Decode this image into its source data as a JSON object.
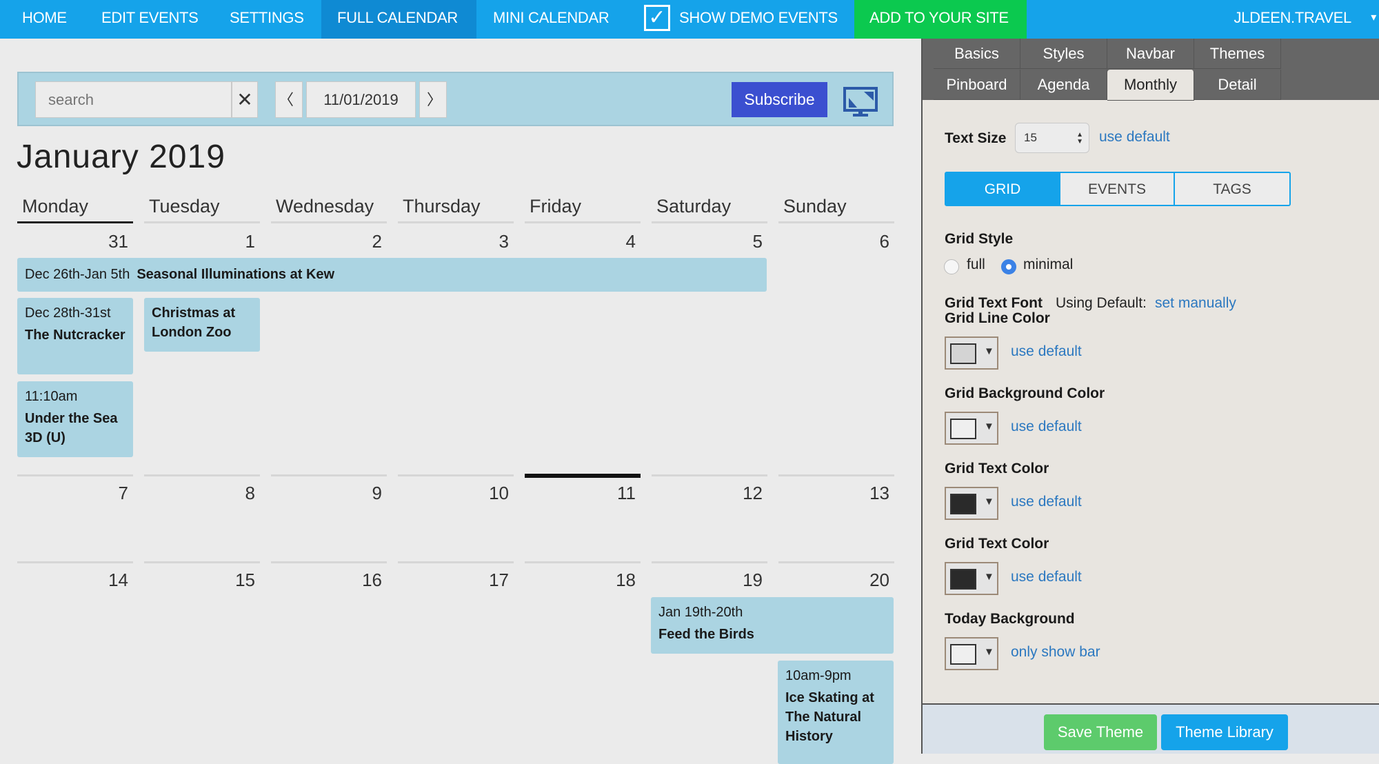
{
  "nav": {
    "items": [
      "HOME",
      "EDIT EVENTS",
      "SETTINGS",
      "FULL CALENDAR",
      "MINI CALENDAR"
    ],
    "active": "FULL CALENDAR",
    "demo_label": "SHOW DEMO EVENTS",
    "demo_checked": true,
    "add_label": "ADD TO YOUR SITE",
    "account": "JLDEEN.TRAVEL",
    "account_caret": "▾",
    "colors": {
      "bar": "#15a3ea",
      "active": "#0f8ad3",
      "add": "#0bc94f"
    }
  },
  "toolbar": {
    "search_placeholder": "search",
    "clear_glyph": "✕",
    "prev_glyph": "〈",
    "date": "11/01/2019",
    "next_glyph": "〉",
    "subscribe": "Subscribe",
    "fullscreen_icon": "monitor-icon"
  },
  "calendar": {
    "title": "January 2019",
    "days": [
      "Monday",
      "Tuesday",
      "Wednesday",
      "Thursday",
      "Friday",
      "Saturday",
      "Sunday"
    ],
    "weeks": [
      [
        "31",
        "1",
        "2",
        "3",
        "4",
        "5",
        "6"
      ],
      [
        "7",
        "8",
        "9",
        "10",
        "11",
        "12",
        "13"
      ],
      [
        "14",
        "15",
        "16",
        "17",
        "18",
        "19",
        "20"
      ]
    ],
    "today": "11",
    "events": [
      {
        "date": "Dec 26th-Jan 5th",
        "title": "Seasonal Illuminations at Kew",
        "inline": true
      },
      {
        "date": "Dec 28th-31st",
        "title": "The Nutcracker"
      },
      {
        "date": "",
        "title": "Christmas at London Zoo"
      },
      {
        "date": "11:10am",
        "title": "Under the Sea 3D (U)"
      },
      {
        "date": "Jan 19th-20th",
        "title": "Feed the Birds"
      },
      {
        "date": "10am-9pm",
        "title": "Ice Skating at The Natural History"
      }
    ],
    "event_color": "#abd4e2"
  },
  "panel": {
    "tabs_row1": [
      "Basics",
      "Styles",
      "Navbar",
      "Themes"
    ],
    "tabs_row2": [
      "Pinboard",
      "Agenda",
      "Monthly",
      "Detail"
    ],
    "active_tab": "Monthly",
    "text_size": {
      "label": "Text Size",
      "value": "15",
      "link": "use default"
    },
    "segments": [
      "GRID",
      "EVENTS",
      "TAGS"
    ],
    "active_segment": "GRID",
    "grid_style": {
      "label": "Grid Style",
      "options": [
        "full",
        "minimal"
      ],
      "selected": "minimal"
    },
    "grid_font": {
      "label": "Grid Text Font",
      "status": "Using Default:",
      "link": "set manually"
    },
    "colors": [
      {
        "label": "Grid Line Color",
        "swatch": "#d4d4d4",
        "link": "use default"
      },
      {
        "label": "Grid Background Color",
        "swatch": "#efefef",
        "link": "use default"
      },
      {
        "label": "Grid Text Color",
        "swatch": "#2a2a2a",
        "link": "use default"
      },
      {
        "label": "Grid Text Color",
        "swatch": "#2a2a2a",
        "link": "use default"
      },
      {
        "label": "Today Background",
        "swatch": "#efefef",
        "link": "only show bar"
      }
    ],
    "save": "Save Theme",
    "library": "Theme Library"
  }
}
